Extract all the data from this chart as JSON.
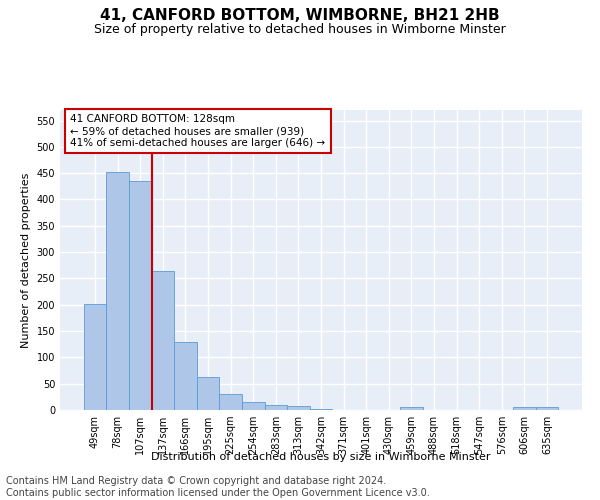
{
  "title": "41, CANFORD BOTTOM, WIMBORNE, BH21 2HB",
  "subtitle": "Size of property relative to detached houses in Wimborne Minster",
  "xlabel": "Distribution of detached houses by size in Wimborne Minster",
  "ylabel": "Number of detached properties",
  "footer_line1": "Contains HM Land Registry data © Crown copyright and database right 2024.",
  "footer_line2": "Contains public sector information licensed under the Open Government Licence v3.0.",
  "bar_labels": [
    "49sqm",
    "78sqm",
    "107sqm",
    "137sqm",
    "166sqm",
    "195sqm",
    "225sqm",
    "254sqm",
    "283sqm",
    "313sqm",
    "342sqm",
    "371sqm",
    "401sqm",
    "430sqm",
    "459sqm",
    "488sqm",
    "518sqm",
    "547sqm",
    "576sqm",
    "606sqm",
    "635sqm"
  ],
  "bar_values": [
    201,
    452,
    435,
    265,
    129,
    62,
    30,
    15,
    10,
    7,
    2,
    0,
    0,
    0,
    5,
    0,
    0,
    0,
    0,
    6,
    5
  ],
  "bar_color": "#aec6e8",
  "bar_edge_color": "#5b9bd5",
  "ylim": [
    0,
    570
  ],
  "yticks": [
    0,
    50,
    100,
    150,
    200,
    250,
    300,
    350,
    400,
    450,
    500,
    550
  ],
  "vline_x": 2.5,
  "vline_color": "#cc0000",
  "annotation_text": "41 CANFORD BOTTOM: 128sqm\n← 59% of detached houses are smaller (939)\n41% of semi-detached houses are larger (646) →",
  "annotation_box_color": "#cc0000",
  "background_color": "#ffffff",
  "plot_bg_color": "#e8eef8",
  "grid_color": "#ffffff",
  "title_fontsize": 11,
  "subtitle_fontsize": 9,
  "axis_label_fontsize": 8,
  "tick_fontsize": 7,
  "footer_fontsize": 7
}
